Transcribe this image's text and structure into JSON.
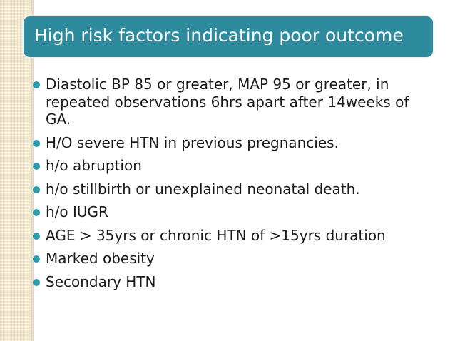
{
  "slide": {
    "title": "High risk factors indicating poor outcome",
    "bullets": [
      "Diastolic BP 85 or greater, MAP 95 or greater, in repeated observations 6hrs apart after 14weeks of GA.",
      "H/O severe HTN in previous pregnancies.",
      "h/o abruption",
      "h/o stillbirth or unexplained neonatal death.",
      "h/o IUGR",
      "AGE > 35yrs or chronic HTN of >15yrs duration",
      "Marked obesity",
      "Secondary HTN"
    ],
    "colors": {
      "title_background": "#2e8b9e",
      "bullet": "#2e9bb0",
      "side_band": "#f2e8cf",
      "text": "#1a1a1a"
    },
    "icons": {
      "bullet": "bullet-dot-icon"
    }
  }
}
